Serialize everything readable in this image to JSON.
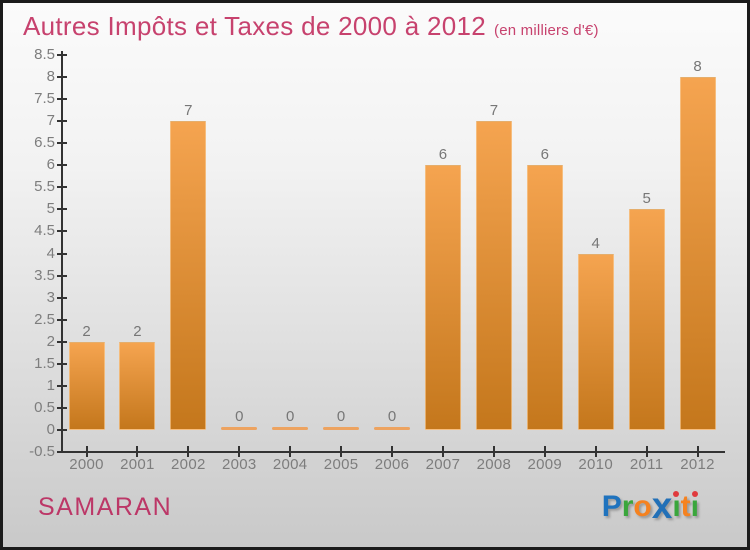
{
  "header": {
    "title": "Autres Impôts et Taxes de 2000 à 2012",
    "subtitle": "(en milliers d'€)",
    "title_color": "#c7426e"
  },
  "chart_data": {
    "type": "bar",
    "title": "Autres Impôts et Taxes de 2000 à 2012",
    "subtitle": "(en milliers d'€)",
    "categories": [
      "2000",
      "2001",
      "2002",
      "2003",
      "2004",
      "2005",
      "2006",
      "2007",
      "2008",
      "2009",
      "2010",
      "2011",
      "2012"
    ],
    "values": [
      2,
      2,
      7,
      0,
      0,
      0,
      0,
      6,
      7,
      6,
      4,
      5,
      8
    ],
    "bar_value_labels": [
      "2",
      "2",
      "7",
      "0",
      "0",
      "0",
      "0",
      "6",
      "7",
      "6",
      "4",
      "5",
      "8"
    ],
    "xlabel": "",
    "ylabel": "",
    "ylim": [
      -0.5,
      8.5
    ],
    "yticks": [
      "8.5",
      "8",
      "7.5",
      "7",
      "6.5",
      "6",
      "5.5",
      "5",
      "4.5",
      "4",
      "3.5",
      "3",
      "2.5",
      "2",
      "1.5",
      "1",
      "0.5",
      "0",
      "-0.5"
    ],
    "grid": false,
    "legend": false,
    "bar_color_top": "#f5a450",
    "bar_color_bottom": "#c4771c",
    "zero_bar_color": "#eda360",
    "axis_color": "#333333",
    "tick_label_color": "#7d7d7d",
    "value_label_color": "#777777"
  },
  "footer": {
    "location_label": "SAMARAN",
    "location_color": "#bc3767",
    "logo": {
      "name": "Proxiti",
      "letters": [
        {
          "char": "P",
          "color": "#1f73be"
        },
        {
          "char": "r",
          "color": "#3aa63c"
        },
        {
          "char": "o",
          "color": "#f58220"
        },
        {
          "char": "x",
          "color": "#2270b7",
          "big": true
        },
        {
          "char": "i",
          "color": "#3aa63c",
          "dot": "#e03a3e"
        },
        {
          "char": "t",
          "color": "#f58220"
        },
        {
          "char": "i",
          "color": "#3aa63c",
          "dot": "#e03a3e"
        }
      ]
    }
  }
}
